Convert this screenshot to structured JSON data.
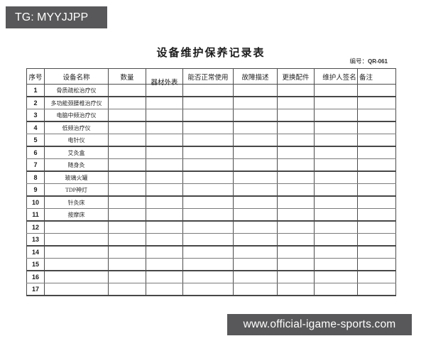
{
  "overlay": {
    "top_banner": "TG: MYYJJPP",
    "bottom_banner": "www.official-igame-sports.com",
    "banner_bg": "#58585a",
    "banner_text_color": "#ffffff"
  },
  "document": {
    "title": "设备维护保养记录表",
    "code_label": "编号：",
    "code_value": "QR-061"
  },
  "table": {
    "headers": [
      "序号",
      "设备名称",
      "数量",
      "器材外表",
      "能否正常使用",
      "故障描述",
      "更换配件",
      "维护人签名",
      "备注"
    ],
    "rows": [
      {
        "no": "1",
        "name": "骨质疏松治疗仪"
      },
      {
        "no": "2",
        "name": "多功能颈腰椎治疗仪"
      },
      {
        "no": "3",
        "name": "电脑中频治疗仪"
      },
      {
        "no": "4",
        "name": "低频治疗仪"
      },
      {
        "no": "5",
        "name": "电针仪"
      },
      {
        "no": "6",
        "name": "艾灸盒"
      },
      {
        "no": "7",
        "name": "随身灸"
      },
      {
        "no": "8",
        "name": "玻璃火罐"
      },
      {
        "no": "9",
        "name": "TDP神灯"
      },
      {
        "no": "10",
        "name": "针灸床"
      },
      {
        "no": "11",
        "name": "按摩床"
      },
      {
        "no": "12",
        "name": ""
      },
      {
        "no": "13",
        "name": ""
      },
      {
        "no": "14",
        "name": ""
      },
      {
        "no": "15",
        "name": ""
      },
      {
        "no": "16",
        "name": ""
      },
      {
        "no": "17",
        "name": ""
      }
    ]
  }
}
